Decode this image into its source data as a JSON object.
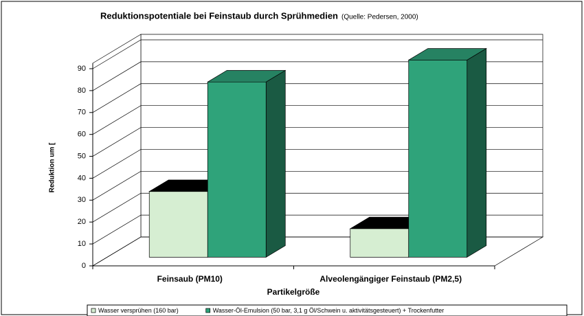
{
  "chart_data": {
    "type": "bar",
    "title": "Reduktionspotentiale bei Feinstaub durch Sprühmedien",
    "subtitle": "(Quelle: Pedersen, 2000)",
    "y_label": "Reduktion um [",
    "x_label": "Partikelgröße",
    "categories": [
      "Feinsaub (PM10)",
      "Alveolengängiger Feinstaub (PM2,5)"
    ],
    "series": [
      {
        "name": "Wasser versprühen (160 bar)",
        "color": "#d6eed2",
        "values": [
          30,
          13
        ]
      },
      {
        "name": "Wasser-Öl-Emulsion (50 bar, 3,1 g Öl/Schwein u. aktivitätsgesteuert) + Trockenfutter",
        "color": "#2fa37a",
        "values": [
          80,
          90
        ]
      }
    ],
    "ylim": [
      0,
      90
    ],
    "yticks": [
      0,
      10,
      20,
      30,
      40,
      50,
      60,
      70,
      80,
      90
    ],
    "grid": true
  }
}
